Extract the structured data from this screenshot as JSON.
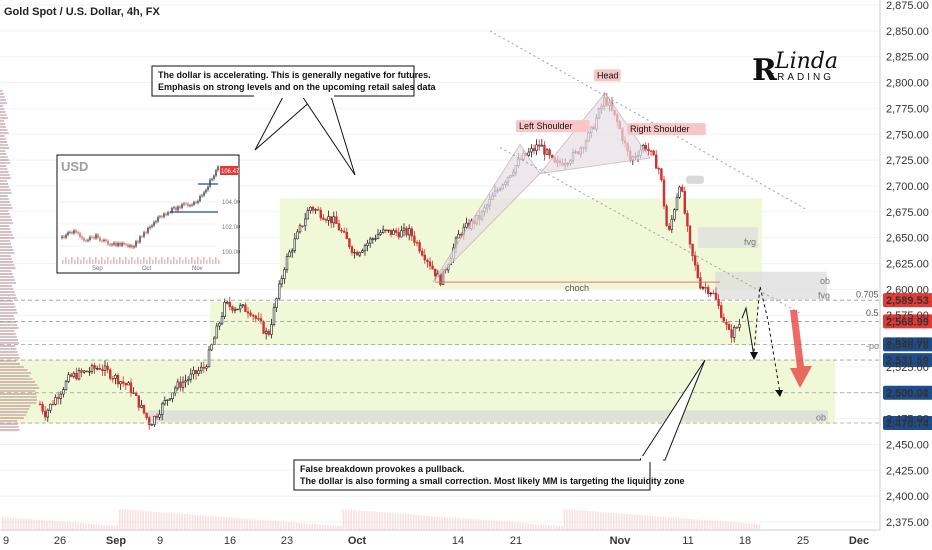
{
  "header": {
    "title": "Gold Spot / U.S. Dollar, 4h, FX"
  },
  "logo": {
    "line1": "Linda",
    "line2": "TRADING"
  },
  "colors": {
    "up": "#26a69a",
    "down": "#ef5350",
    "candle_up": "#1b1b1b",
    "candle_down": "#d32f2f",
    "zone_fill": "#f1f8d8",
    "badge_red": "#e53935",
    "badge_blue": "#1e4d8c",
    "grid": "#eeeeee"
  },
  "chart_data": {
    "type": "candlestick",
    "symbol": "XAUUSD",
    "timeframe": "4h",
    "ylim": [
      2365,
      2880
    ],
    "y_ticks": [
      2375,
      2400,
      2425,
      2450,
      2475,
      2500,
      2525,
      2550,
      2575,
      2600,
      2625,
      2650,
      2675,
      2700,
      2725,
      2750,
      2775,
      2800,
      2825,
      2850,
      2875
    ],
    "y_tick_labels": [
      "2,375.00",
      "2,400.00",
      "2,425.00",
      "2,450.00",
      "2,475.00",
      "2,500.00",
      "2,525.00",
      "2,550.00",
      "2,575.00",
      "2,600.00",
      "2,625.00",
      "2,650.00",
      "2,675.00",
      "2,700.00",
      "2,725.00",
      "2,750.00",
      "2,775.00",
      "2,800.00",
      "2,825.00",
      "2,850.00",
      "2,875.00"
    ],
    "x_labels": [
      "9",
      "26",
      "Sep",
      "9",
      "16",
      "23",
      "Oct",
      "14",
      "21",
      "Nov",
      "11",
      "18",
      "25",
      "Dec"
    ],
    "price_path": [
      [
        0,
        2510
      ],
      [
        20,
        2525
      ],
      [
        45,
        2480
      ],
      [
        70,
        2515
      ],
      [
        100,
        2525
      ],
      [
        130,
        2505
      ],
      [
        150,
        2470
      ],
      [
        175,
        2505
      ],
      [
        205,
        2525
      ],
      [
        225,
        2585
      ],
      [
        250,
        2580
      ],
      [
        268,
        2555
      ],
      [
        285,
        2625
      ],
      [
        310,
        2680
      ],
      [
        335,
        2665
      ],
      [
        355,
        2635
      ],
      [
        380,
        2655
      ],
      [
        410,
        2655
      ],
      [
        430,
        2625
      ],
      [
        440,
        2608
      ],
      [
        460,
        2655
      ],
      [
        480,
        2670
      ],
      [
        500,
        2700
      ],
      [
        520,
        2725
      ],
      [
        540,
        2740
      ],
      [
        555,
        2720
      ],
      [
        575,
        2730
      ],
      [
        590,
        2750
      ],
      [
        605,
        2785
      ],
      [
        618,
        2760
      ],
      [
        630,
        2725
      ],
      [
        645,
        2740
      ],
      [
        660,
        2715
      ],
      [
        668,
        2650
      ],
      [
        680,
        2705
      ],
      [
        690,
        2640
      ],
      [
        700,
        2605
      ],
      [
        712,
        2598
      ],
      [
        720,
        2580
      ],
      [
        730,
        2555
      ],
      [
        742,
        2570
      ]
    ],
    "price_levels": [
      {
        "value": 2589.53,
        "label": "2,589.53",
        "color": "#e53935"
      },
      {
        "value": 2568.99,
        "label": "2,568.99",
        "color": "#e53935"
      },
      {
        "value": 2546.78,
        "label": "2,546.78",
        "color": "#1e4d8c"
      },
      {
        "value": 2531.59,
        "label": "2,531.59",
        "color": "#1e4d8c"
      },
      {
        "value": 2500.01,
        "label": "2,500.01",
        "color": "#1e4d8c"
      },
      {
        "value": 2470.74,
        "label": "2,470.74",
        "color": "#1e4d8c"
      }
    ],
    "fib_labels": [
      "0.705",
      "0.5"
    ],
    "zone_labels": [
      "ob",
      "fvg",
      "-poi",
      "ob",
      "fvg"
    ],
    "pattern_labels": {
      "left_shoulder": "Left Shoulder",
      "head": "Head",
      "right_shoulder": "Right Shoulder",
      "choch": "choch"
    },
    "annotations": [
      "The dollar is accelerating. This is generally negative for futures.",
      "Emphasis on strong levels and on the upcoming retail sales data",
      "False breakdown provokes a pullback.",
      "The dollar is also forming a small correction. Most likely MM is targeting the liquidity zone"
    ],
    "inset": {
      "title": "USD",
      "price_label": "106.47",
      "y_ticks": [
        "104.00",
        "102.00",
        "100.00"
      ],
      "x_labels": [
        "Sep",
        "Oct",
        "Nov"
      ]
    }
  }
}
